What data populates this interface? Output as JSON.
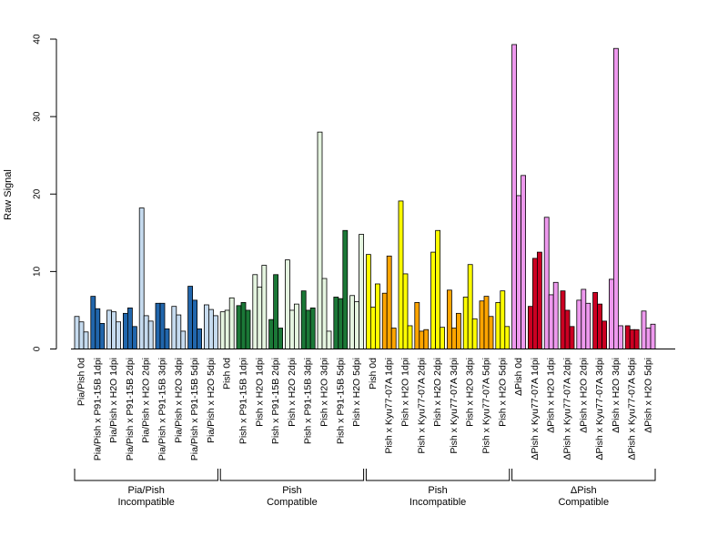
{
  "chart_data": {
    "type": "bar",
    "ylabel": "Raw Signal",
    "ylim": [
      0,
      40
    ],
    "yticks": [
      0,
      10,
      20,
      30,
      40
    ],
    "replicates_per_category": 3,
    "categories": [
      "Pia/Pish 0d",
      "Pia/Pish x P91-15B 1dpi",
      "Pia/Pish x H2O 1dpi",
      "Pia/Pish x P91-15B 2dpi",
      "Pia/Pish x H2O 2dpi",
      "Pia/Pish x P91-15B 3dpi",
      "Pia/Pish x H2O 3dpi",
      "Pia/Pish x P91-15B 5dpi",
      "Pia/Pish x H2O 5dpi",
      "Pish 0d",
      "Pish x P91-15B 1dpi",
      "Pish x H2O 1dpi",
      "Pish x P91-15B 2dpi",
      "Pish x H2O 2dpi",
      "Pish x P91-15B 3dpi",
      "Pish x H2O 3dpi",
      "Pish x P91-15B 5dpi",
      "Pish x H2O 5dpi",
      "Pish 0d",
      "Pish x Kyu77-07A 1dpi",
      "Pish x H2O 1dpi",
      "Pish x Kyu77-07A 2dpi",
      "Pish x H2O 2dpi",
      "Pish x Kyu77-07A 3dpi",
      "Pish x H2O 3dpi",
      "Pish x Kyu77-07A 5dpi",
      "Pish x H2O 5dpi",
      "ΔPish 0d",
      "ΔPish x Kyu77-07A 1dpi",
      "ΔPish x H2O 1dpi",
      "ΔPish x Kyu77-07A 2dpi",
      "ΔPish x H2O 2dpi",
      "ΔPish x Kyu77-07A 3dpi",
      "ΔPish x H2O 3dpi",
      "ΔPish x Kyu77-07A 5dpi",
      "ΔPish x H2O 5dpi"
    ],
    "values": [
      [
        4.2,
        3.5,
        2.2
      ],
      [
        6.8,
        5.2,
        3.3
      ],
      [
        5.0,
        4.8,
        3.5
      ],
      [
        4.6,
        5.3,
        2.9
      ],
      [
        18.2,
        4.3,
        3.6
      ],
      [
        5.9,
        5.9,
        2.6
      ],
      [
        5.5,
        4.4,
        2.3
      ],
      [
        8.1,
        6.3,
        2.6
      ],
      [
        5.7,
        5.1,
        4.3
      ],
      [
        4.8,
        5.0,
        6.6
      ],
      [
        5.6,
        6.0,
        5.0
      ],
      [
        9.6,
        8.0,
        10.8
      ],
      [
        3.8,
        9.6,
        2.7
      ],
      [
        11.5,
        5.0,
        5.8
      ],
      [
        7.5,
        5.0,
        5.3
      ],
      [
        28.0,
        9.1,
        2.3
      ],
      [
        6.7,
        6.5,
        15.3
      ],
      [
        6.9,
        6.1,
        14.8
      ],
      [
        12.2,
        5.4,
        8.4
      ],
      [
        7.2,
        12.0,
        2.7
      ],
      [
        19.1,
        9.7,
        3.0
      ],
      [
        6.0,
        2.3,
        2.5
      ],
      [
        12.5,
        15.3,
        2.8
      ],
      [
        7.6,
        2.7,
        4.6
      ],
      [
        6.7,
        10.9,
        3.9
      ],
      [
        6.2,
        6.8,
        4.2
      ],
      [
        6.0,
        7.5,
        2.9
      ],
      [
        39.3,
        19.8,
        22.4
      ],
      [
        5.5,
        11.7,
        12.5
      ],
      [
        17.0,
        7.0,
        8.6
      ],
      [
        7.5,
        5.0,
        2.9
      ],
      [
        6.3,
        7.7,
        5.9
      ],
      [
        7.3,
        5.8,
        3.6
      ],
      [
        9.0,
        38.8,
        3.0
      ],
      [
        3.0,
        2.5,
        2.5
      ],
      [
        4.9,
        2.7,
        3.2
      ]
    ],
    "bar_colors": [
      "#c6dbef",
      "#2166ac",
      "#c6dbef",
      "#2166ac",
      "#c6dbef",
      "#2166ac",
      "#c6dbef",
      "#2166ac",
      "#c6dbef",
      "#e5f5e0",
      "#1b7837",
      "#e5f5e0",
      "#1b7837",
      "#e5f5e0",
      "#1b7837",
      "#e5f5e0",
      "#1b7837",
      "#e5f5e0",
      "#ffff00",
      "#ffa500",
      "#ffff00",
      "#ffa500",
      "#ffff00",
      "#ffa500",
      "#ffff00",
      "#ffa500",
      "#ffff00",
      "#ee99ee",
      "#cc0022",
      "#ee99ee",
      "#cc0022",
      "#ee99ee",
      "#cc0022",
      "#ee99ee",
      "#cc0022",
      "#ee99ee"
    ],
    "groups": [
      {
        "line1": "Pia/Pish",
        "line2": "Incompatible"
      },
      {
        "line1": "Pish",
        "line2": "Compatible"
      },
      {
        "line1": "Pish",
        "line2": "Incompatible"
      },
      {
        "line1": "ΔPish",
        "line2": "Compatible"
      }
    ]
  }
}
